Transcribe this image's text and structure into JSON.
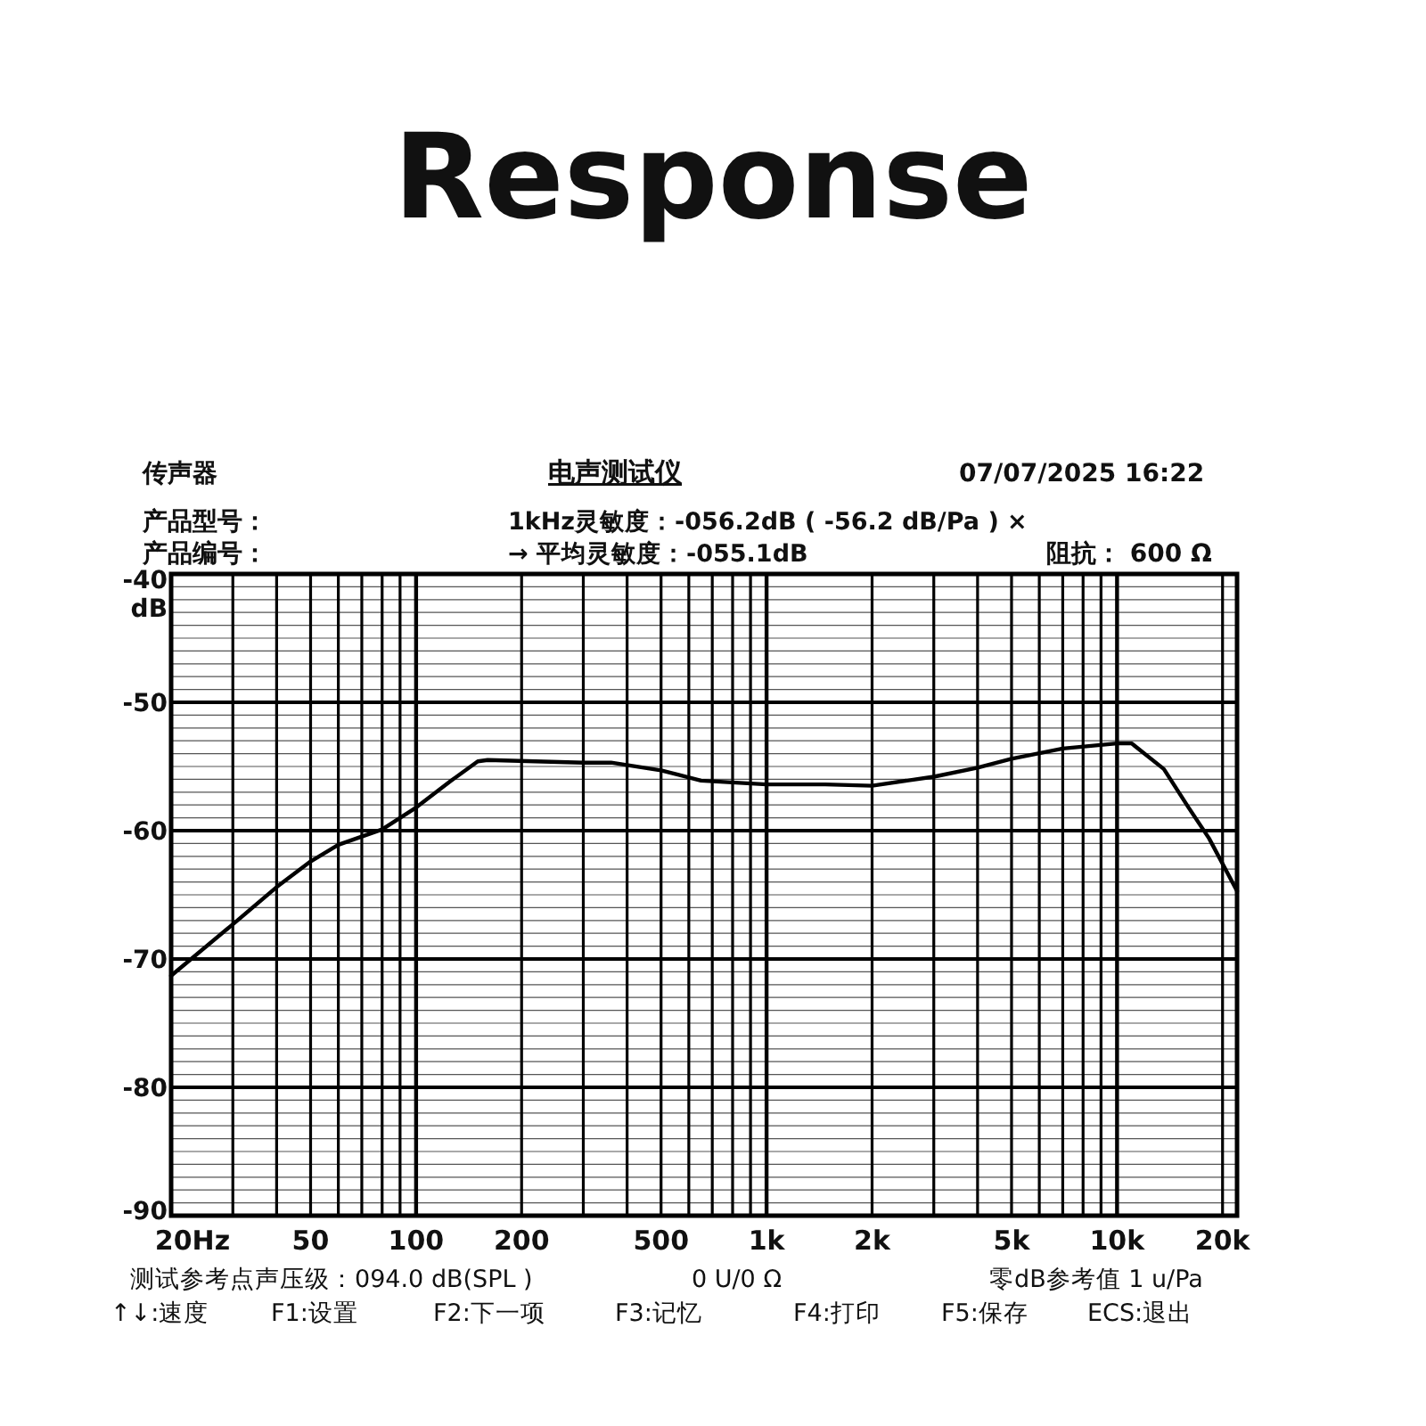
{
  "chart_data": {
    "type": "line",
    "title": "Response",
    "ylabel": "dB",
    "log": "x",
    "grid": true,
    "marker": "none",
    "line_style": "solid",
    "xlim": [
      20,
      22000
    ],
    "ylim": [
      -90,
      -40
    ],
    "xticks": [
      {
        "value": 20,
        "label": "20Hz"
      },
      50,
      100,
      200,
      500,
      {
        "value": 1000,
        "label": "1k"
      },
      {
        "value": 2000,
        "label": "2k"
      },
      {
        "value": 5000,
        "label": "5k"
      },
      {
        "value": 10000,
        "label": "10k"
      },
      {
        "value": 20000,
        "label": "20k"
      }
    ],
    "yticks": [
      -90,
      -80,
      -70,
      -60,
      -50,
      -40
    ],
    "series": [
      {
        "color": "#000000",
        "x": [
          20,
          30,
          40,
          50,
          60,
          80,
          100,
          126,
          150,
          160,
          300,
          360,
          500,
          650,
          1000,
          1470,
          2000,
          3000,
          4000,
          5000,
          7000,
          10000,
          11000,
          13600,
          16000,
          18300,
          22000
        ],
        "values": [
          -71.3,
          -67.3,
          -64.4,
          -62.4,
          -61.1,
          -59.9,
          -58.2,
          -56.1,
          -54.6,
          -54.5,
          -54.7,
          -54.7,
          -55.3,
          -56.1,
          -56.4,
          -56.4,
          -56.5,
          -55.8,
          -55.1,
          -54.4,
          -53.6,
          -53.2,
          -53.2,
          -55.2,
          -58.2,
          -60.6,
          -64.7
        ]
      }
    ],
    "annotations": [
      "传声器",
      "电声测试仪",
      "07/07/2025  16:22",
      "产品型号：",
      "1kHz灵敏度：-056.2dB ( -56.2 dB/Pa ) ×",
      "产品编号：",
      "→ 平均灵敏度：-055.1dB",
      "阻抗： 600 Ω",
      "测试参考点声压级：094.0 dB(SPL )",
      "0 U/0 Ω",
      "零dB参考值 1 u/Pa",
      "↑↓:速度",
      "F1:设置",
      "F2:下一项",
      "F3:记忆",
      "F4:打印",
      "F5:保存",
      "ECS:退出"
    ]
  }
}
